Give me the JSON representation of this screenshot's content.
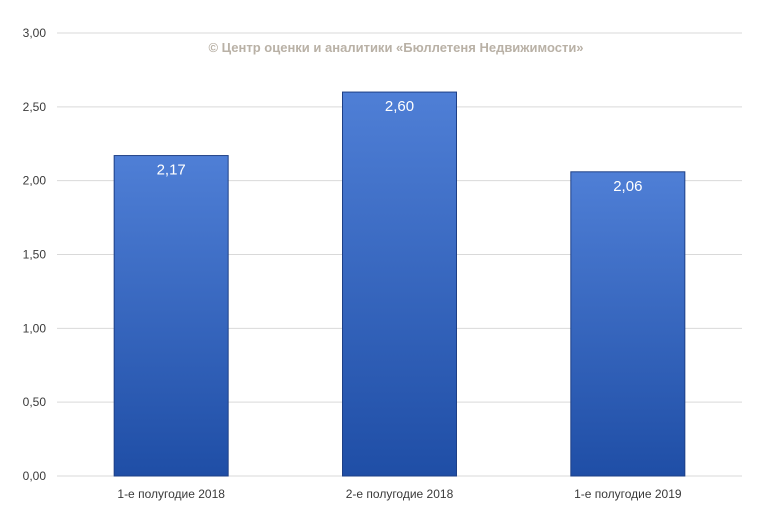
{
  "watermark": "© Центр оценки и аналитики «Бюллетеня Недвижимости»",
  "colors": {
    "bar_top": "#4f7fd6",
    "bar_bottom": "#1f4ea6",
    "bar_stroke": "#1d3f86",
    "grid": "#d9d9d9"
  },
  "chart_data": {
    "type": "bar",
    "categories": [
      "1-е полугодие 2018",
      "2-е полугодие 2018",
      "1-е полугодие 2019"
    ],
    "values": [
      2.17,
      2.6,
      2.06
    ],
    "data_labels": [
      "2,17",
      "2,60",
      "2,06"
    ],
    "yticks": [
      "0,00",
      "0,50",
      "1,00",
      "1,50",
      "2,00",
      "2,50",
      "3,00"
    ],
    "ylim": [
      0,
      3
    ],
    "grid": true,
    "legend": "none"
  }
}
